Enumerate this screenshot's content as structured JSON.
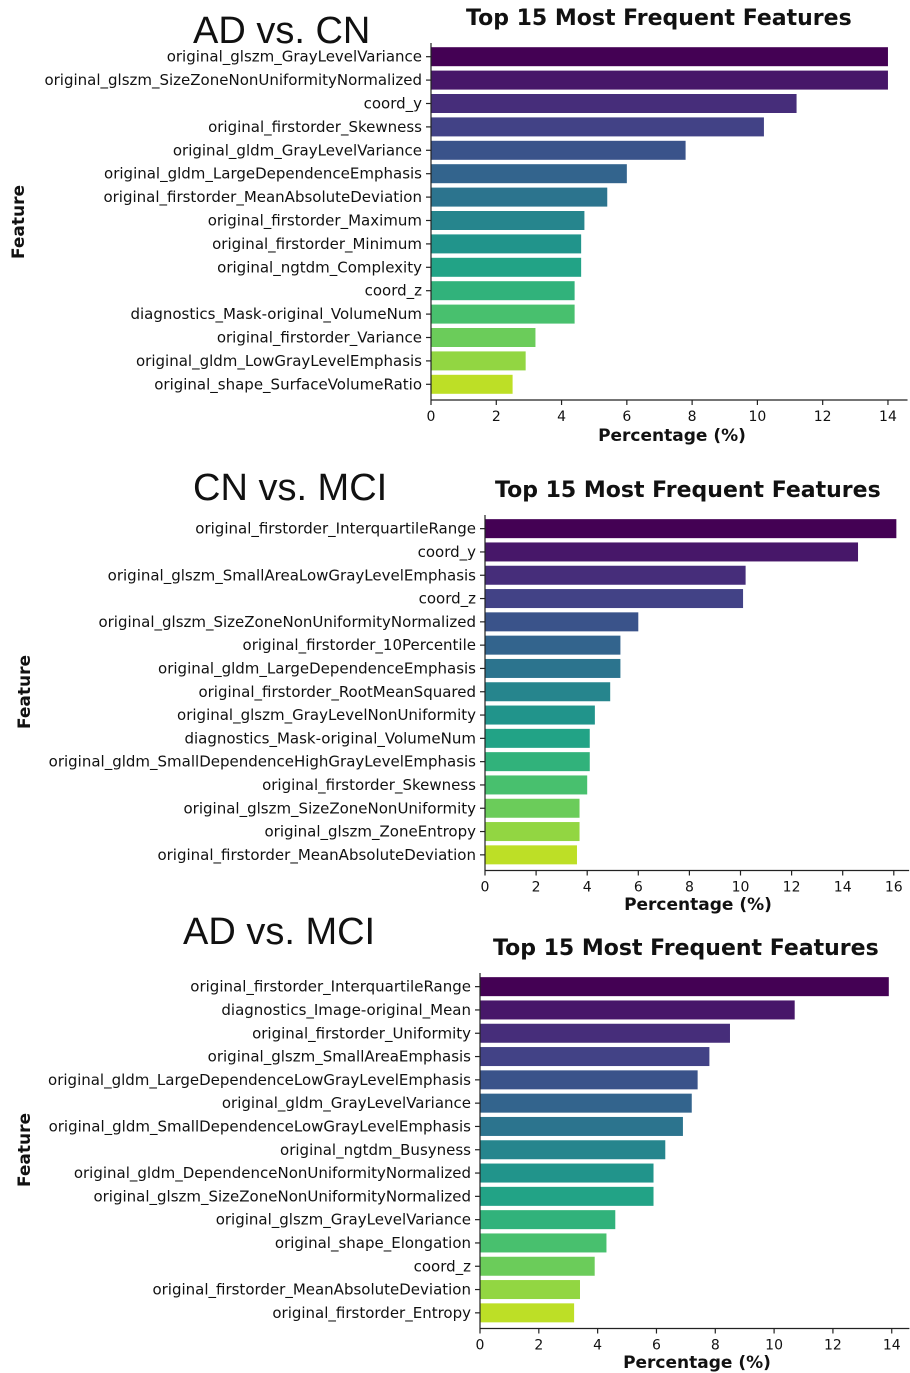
{
  "chart_data": [
    {
      "type": "bar",
      "orientation": "horizontal",
      "heading": "AD vs. CN",
      "title": "Top 15 Most Frequent Features",
      "xlabel": "Percentage (%)",
      "ylabel": "Feature",
      "xlim": [
        0,
        14.6
      ],
      "xticks": [
        0,
        2,
        4,
        6,
        8,
        10,
        12,
        14
      ],
      "grid": false,
      "colormap": "viridis",
      "categories": [
        "original_glszm_GrayLevelVariance",
        "original_glszm_SizeZoneNonUniformityNormalized",
        "coord_y",
        "original_firstorder_Skewness",
        "original_gldm_GrayLevelVariance",
        "original_gldm_LargeDependenceEmphasis",
        "original_firstorder_MeanAbsoluteDeviation",
        "original_firstorder_Maximum",
        "original_firstorder_Minimum",
        "original_ngtdm_Complexity",
        "coord_z",
        "diagnostics_Mask-original_VolumeNum",
        "original_firstorder_Variance",
        "original_gldm_LowGrayLevelEmphasis",
        "original_shape_SurfaceVolumeRatio"
      ],
      "values": [
        14.0,
        14.0,
        11.2,
        10.2,
        7.8,
        6.0,
        5.4,
        4.7,
        4.6,
        4.6,
        4.4,
        4.4,
        3.2,
        2.9,
        2.5
      ]
    },
    {
      "type": "bar",
      "orientation": "horizontal",
      "heading": "CN vs. MCI",
      "title": "Top 15 Most Frequent Features",
      "xlabel": "Percentage (%)",
      "ylabel": "Feature",
      "xlim": [
        0,
        16.6
      ],
      "xticks": [
        0,
        2,
        4,
        6,
        8,
        10,
        12,
        14,
        16
      ],
      "grid": false,
      "colormap": "viridis",
      "categories": [
        "original_firstorder_InterquartileRange",
        "coord_y",
        "original_glszm_SmallAreaLowGrayLevelEmphasis",
        "coord_z",
        "original_glszm_SizeZoneNonUniformityNormalized",
        "original_firstorder_10Percentile",
        "original_gldm_LargeDependenceEmphasis",
        "original_firstorder_RootMeanSquared",
        "original_glszm_GrayLevelNonUniformity",
        "diagnostics_Mask-original_VolumeNum",
        "original_gldm_SmallDependenceHighGrayLevelEmphasis",
        "original_firstorder_Skewness",
        "original_glszm_SizeZoneNonUniformity",
        "original_glszm_ZoneEntropy",
        "original_firstorder_MeanAbsoluteDeviation"
      ],
      "values": [
        16.1,
        14.6,
        10.2,
        10.1,
        6.0,
        5.3,
        5.3,
        4.9,
        4.3,
        4.1,
        4.1,
        4.0,
        3.7,
        3.7,
        3.6
      ]
    },
    {
      "type": "bar",
      "orientation": "horizontal",
      "heading": "AD vs. MCI",
      "title": "Top 15 Most Frequent Features",
      "xlabel": "Percentage (%)",
      "ylabel": "Feature",
      "xlim": [
        0,
        14.6
      ],
      "xticks": [
        0,
        2,
        4,
        6,
        8,
        10,
        12,
        14
      ],
      "grid": false,
      "colormap": "viridis",
      "categories": [
        "original_firstorder_InterquartileRange",
        "diagnostics_Image-original_Mean",
        "original_firstorder_Uniformity",
        "original_glszm_SmallAreaEmphasis",
        "original_gldm_LargeDependenceLowGrayLevelEmphasis",
        "original_gldm_GrayLevelVariance",
        "original_gldm_SmallDependenceLowGrayLevelEmphasis",
        "original_ngtdm_Busyness",
        "original_gldm_DependenceNonUniformityNormalized",
        "original_glszm_SizeZoneNonUniformityNormalized",
        "original_glszm_GrayLevelVariance",
        "original_shape_Elongation",
        "coord_z",
        "original_firstorder_MeanAbsoluteDeviation",
        "original_firstorder_Entropy"
      ],
      "values": [
        13.9,
        10.7,
        8.5,
        7.8,
        7.4,
        7.2,
        6.9,
        6.3,
        5.9,
        5.9,
        4.6,
        4.3,
        3.9,
        3.4,
        3.2
      ]
    }
  ]
}
